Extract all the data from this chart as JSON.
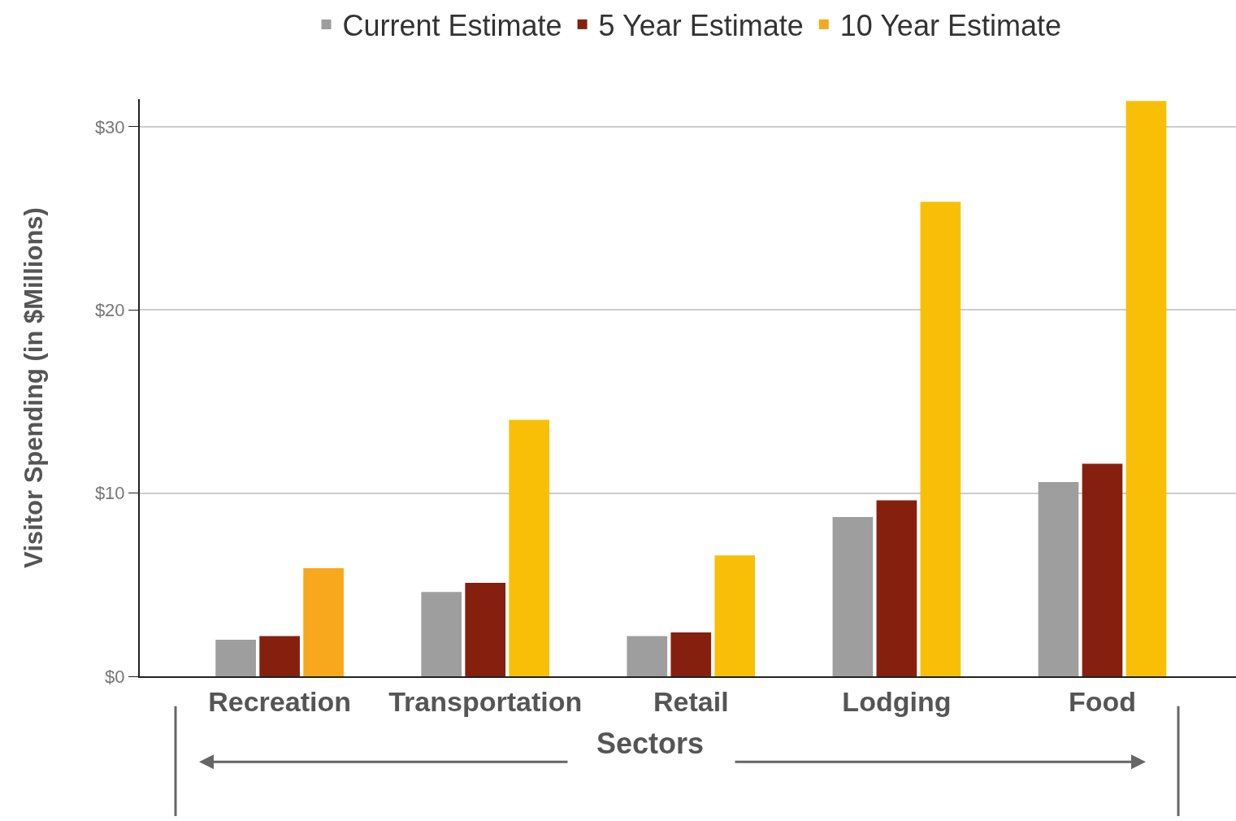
{
  "chart_data": {
    "type": "bar",
    "xlabel": "Sectors",
    "ylabel": "Visitor Spending (in $Millions)",
    "categories": [
      "Recreation",
      "Transportation",
      "Retail",
      "Lodging",
      "Food"
    ],
    "series": [
      {
        "name": "Current Estimate",
        "color": "#9e9e9e",
        "values": [
          2.0,
          4.6,
          2.2,
          8.7,
          10.6
        ]
      },
      {
        "name": "5 Year Estimate",
        "color": "#86200e",
        "values": [
          2.2,
          5.1,
          2.4,
          9.6,
          11.6
        ]
      },
      {
        "name": "10 Year Estimate",
        "color": "#f8bf06",
        "colors": [
          "#f8a81c",
          "#f8bf06",
          "#f8bf06",
          "#f8bf06",
          "#f8bf06"
        ],
        "values": [
          5.9,
          14.0,
          6.6,
          25.9,
          31.4
        ]
      }
    ],
    "ylim": [
      0,
      31.5
    ],
    "yticks": [
      {
        "value": 0,
        "label": "$0"
      },
      {
        "value": 10,
        "label": "$10"
      },
      {
        "value": 20,
        "label": "$20"
      },
      {
        "value": 30,
        "label": "$30"
      }
    ],
    "grid": "y",
    "legend": "top"
  }
}
